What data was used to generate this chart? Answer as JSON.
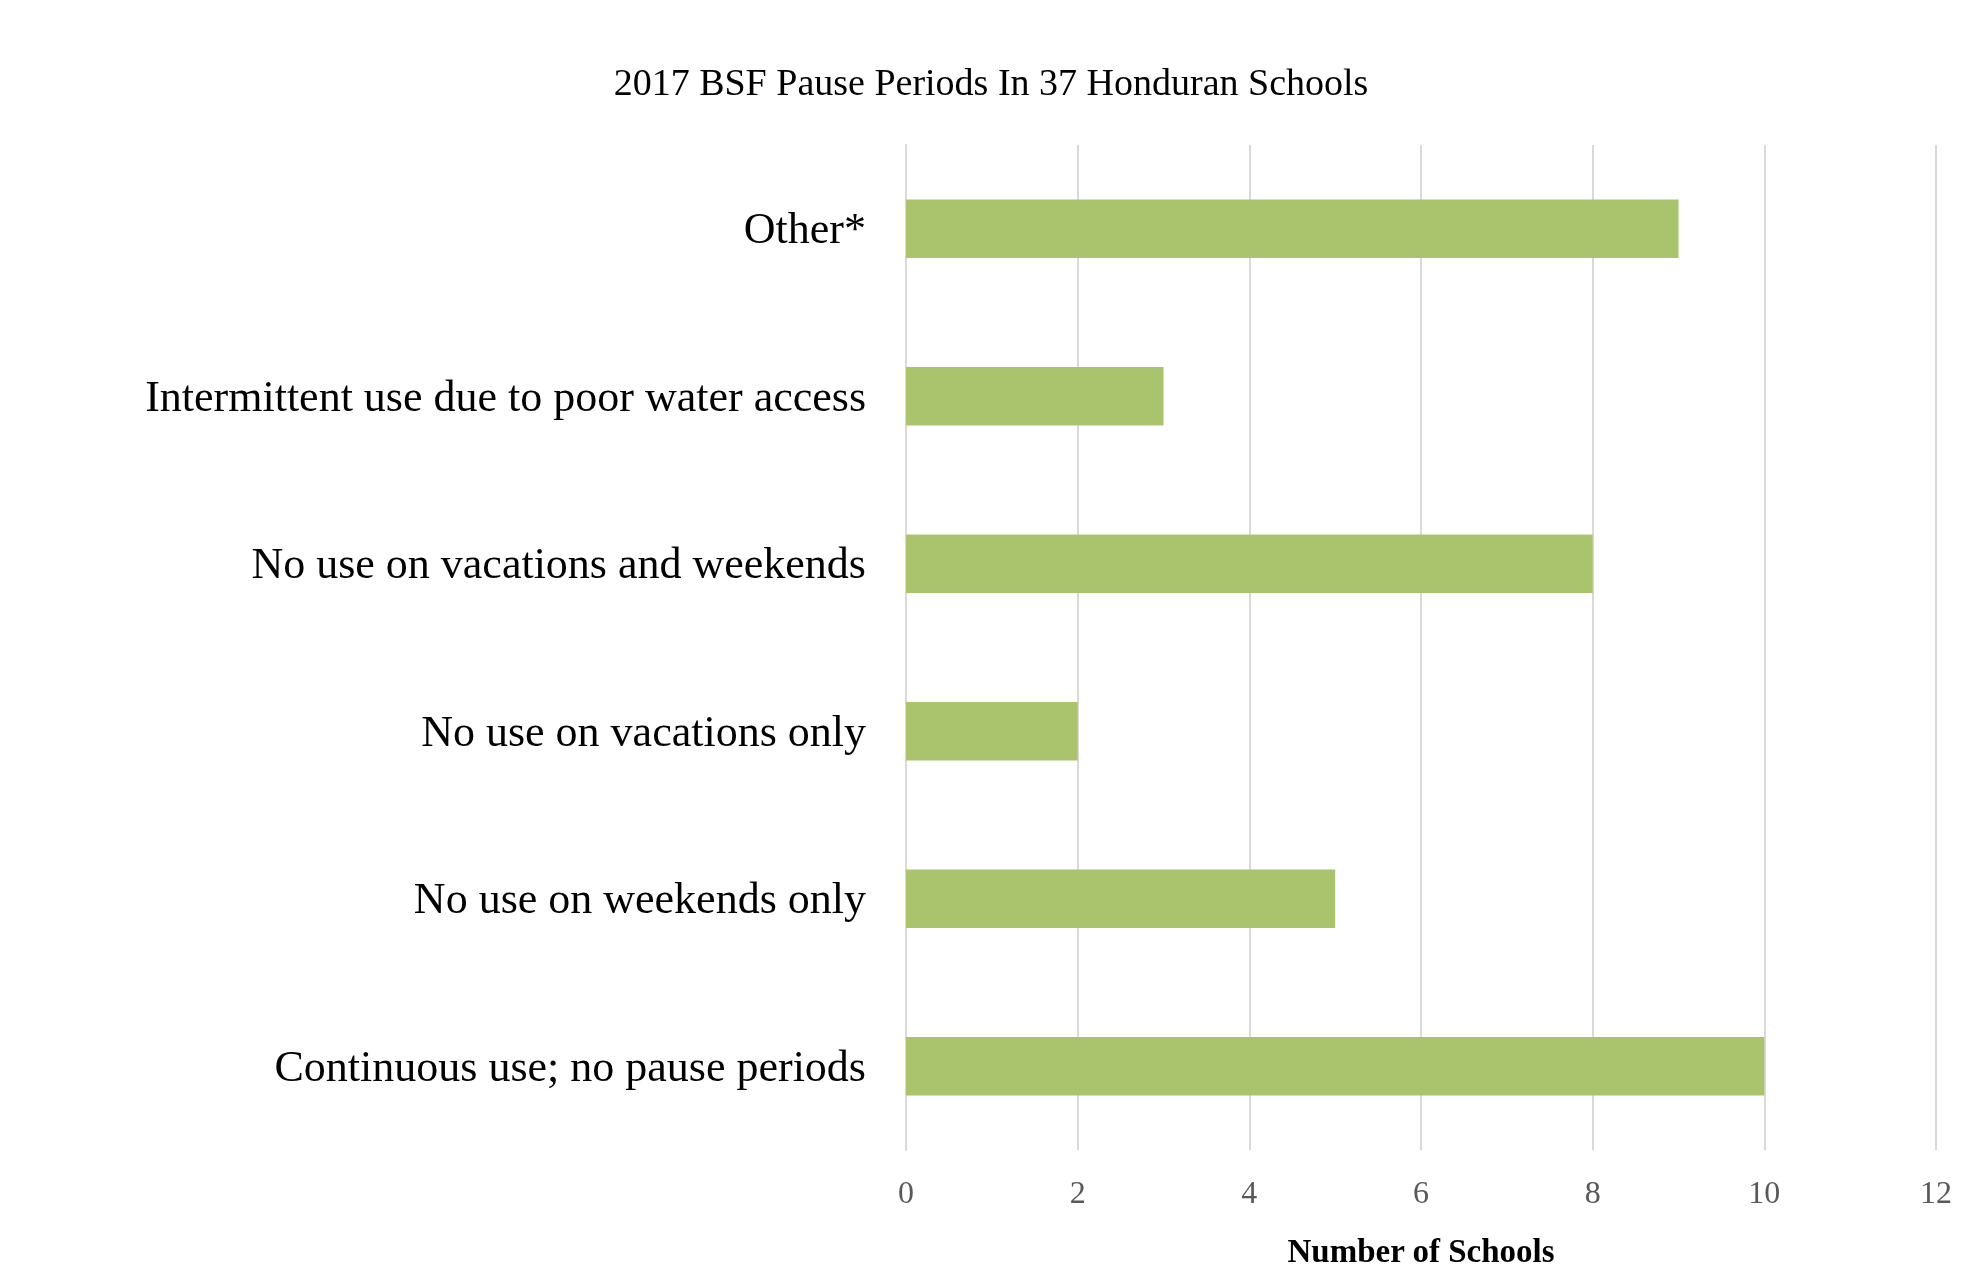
{
  "chart_data": {
    "type": "bar",
    "orientation": "horizontal",
    "title": "2017 BSF Pause Periods In 37 Honduran Schools",
    "xlabel": "Number of Schools",
    "categories": [
      "Other*",
      "Intermittent use due to poor water access",
      "No use on vacations and weekends",
      "No use on vacations only",
      "No use on weekends only",
      "Continuous use; no pause periods"
    ],
    "values": [
      9,
      3,
      8,
      2,
      5,
      10
    ],
    "color": "#a9c46c",
    "xlim": [
      0,
      12
    ],
    "xticks": [
      0,
      2,
      4,
      6,
      8,
      10,
      12
    ],
    "grid": "x"
  }
}
